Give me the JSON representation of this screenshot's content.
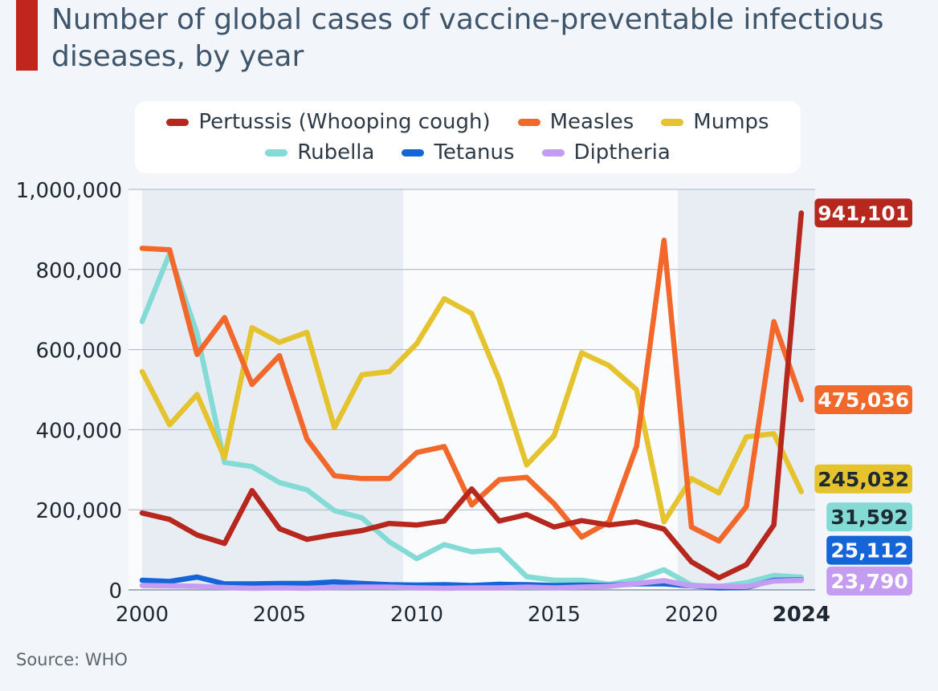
{
  "header": {
    "title": "Number of global cases of vaccine-preventable infectious diseases, by year",
    "accent_color": "#c0251e"
  },
  "footer": {
    "source": "Source: WHO"
  },
  "chart_data": {
    "type": "line",
    "title": "Number of global cases of vaccine-preventable infectious diseases, by year",
    "xlabel": "",
    "ylabel": "",
    "xlim": [
      2000,
      2024
    ],
    "ylim": [
      0,
      1000000
    ],
    "y_ticks": [
      0,
      200000,
      400000,
      600000,
      800000,
      1000000
    ],
    "y_tick_labels": [
      "0",
      "200,000",
      "400,000",
      "600,000",
      "800,000",
      "1,000,000"
    ],
    "x_ticks": [
      2000,
      2005,
      2010,
      2015,
      2020,
      2024
    ],
    "x_tick_labels": [
      "2000",
      "2005",
      "2010",
      "2015",
      "2020",
      "2024"
    ],
    "grid": true,
    "legend_position": "top",
    "shaded_periods": [
      [
        2000,
        2009.5
      ],
      [
        2019.5,
        2024.6
      ]
    ],
    "x": [
      2000,
      2001,
      2002,
      2003,
      2004,
      2005,
      2006,
      2007,
      2008,
      2009,
      2010,
      2011,
      2012,
      2013,
      2014,
      2015,
      2016,
      2017,
      2018,
      2019,
      2020,
      2021,
      2022,
      2023,
      2024
    ],
    "series": [
      {
        "name": "Rubella",
        "color": "#84dad5",
        "end_label": "31,592",
        "values": [
          670000,
          840000,
          640000,
          318000,
          308000,
          268000,
          250000,
          198000,
          180000,
          120000,
          78000,
          113000,
          95000,
          100000,
          33000,
          24000,
          24000,
          14000,
          26000,
          50000,
          12000,
          8000,
          18000,
          36000,
          31592
        ]
      },
      {
        "name": "Tetanus",
        "color": "#1565d8",
        "end_label": "25,112",
        "values": [
          24000,
          21000,
          32000,
          15000,
          15000,
          16000,
          16000,
          20000,
          16000,
          13000,
          12000,
          13000,
          11000,
          14000,
          13000,
          11000,
          12000,
          11000,
          15000,
          15000,
          10000,
          5000,
          6000,
          24000,
          25112
        ]
      },
      {
        "name": "Diptheria",
        "color": "#c49cf2",
        "end_label": "23,790",
        "values": [
          11000,
          10000,
          9000,
          6000,
          4000,
          5000,
          4000,
          6000,
          7000,
          7000,
          5000,
          4000,
          5000,
          5000,
          7000,
          5000,
          7000,
          9000,
          16000,
          23000,
          10000,
          9000,
          8000,
          22000,
          23790
        ]
      },
      {
        "name": "Mumps",
        "color": "#e5c32e",
        "end_label": "245,032",
        "values": [
          545000,
          412000,
          488000,
          330000,
          655000,
          618000,
          643000,
          405000,
          537000,
          545000,
          615000,
          727000,
          690000,
          525000,
          312000,
          385000,
          592000,
          560000,
          500000,
          170000,
          278000,
          242000,
          382000,
          390000,
          245032
        ]
      },
      {
        "name": "Measles",
        "color": "#f2672a",
        "end_label": "475,036",
        "values": [
          853000,
          849000,
          588000,
          680000,
          513000,
          585000,
          377000,
          285000,
          278000,
          278000,
          343000,
          358000,
          212000,
          275000,
          281000,
          215000,
          132000,
          170000,
          358000,
          873000,
          157000,
          122000,
          208000,
          670000,
          475036
        ]
      },
      {
        "name": "Pertussis (Whooping cough)",
        "color": "#b6271d",
        "end_label": "941,101",
        "values": [
          192000,
          176000,
          137000,
          116000,
          248000,
          153000,
          126000,
          138000,
          148000,
          166000,
          162000,
          172000,
          252000,
          172000,
          188000,
          157000,
          173000,
          162000,
          170000,
          152000,
          70000,
          30000,
          63000,
          162000,
          941101
        ]
      }
    ],
    "legend_order": [
      [
        "Pertussis (Whooping cough)",
        "Measles",
        "Mumps"
      ],
      [
        "Rubella",
        "Tetanus",
        "Diptheria"
      ]
    ],
    "label_text_colors": {
      "Pertussis (Whooping cough)": "#ffffff",
      "Measles": "#ffffff",
      "Mumps": "#1f2933",
      "Rubella": "#1f2933",
      "Tetanus": "#ffffff",
      "Diptheria": "#ffffff"
    },
    "end_label_slots": {
      "Pertussis (Whooping cough)": 941101,
      "Measles": 475036,
      "Mumps": 277000,
      "Rubella": 182000,
      "Tetanus": 99000,
      "Diptheria": 22000
    }
  }
}
